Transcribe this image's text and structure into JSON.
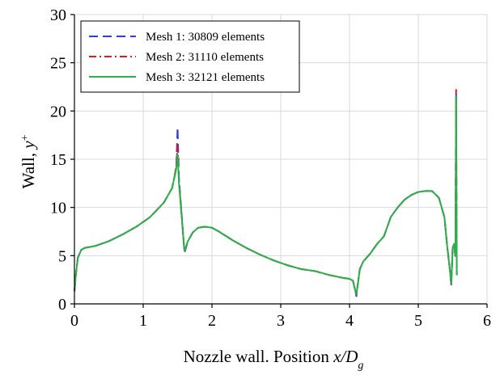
{
  "chart_data": {
    "type": "line",
    "title": "",
    "xlabel": "Nozzle wall. Position x/D",
    "xlabel_parts": {
      "main": "Nozzle wall. Position ",
      "var": "x/D",
      "sub": "g"
    },
    "ylabel": "Wall, y+",
    "ylabel_parts": {
      "main": "Wall, ",
      "var": "y",
      "sup": "+"
    },
    "xlim": [
      0,
      6
    ],
    "ylim": [
      0,
      30
    ],
    "xticks": [
      0,
      1,
      2,
      3,
      4,
      5,
      6
    ],
    "yticks": [
      0,
      5,
      10,
      15,
      20,
      25,
      30
    ],
    "grid": true,
    "legend_position": "top-left",
    "series": [
      {
        "name": "Mesh  1: 30809 elements",
        "color": "#2f3fd6",
        "style": "dashed",
        "x": [
          0.0,
          0.02,
          0.05,
          0.1,
          0.15,
          0.3,
          0.5,
          0.7,
          0.9,
          1.1,
          1.3,
          1.42,
          1.48,
          1.5,
          1.52,
          1.56,
          1.6,
          1.65,
          1.72,
          1.8,
          1.9,
          2.0,
          2.1,
          2.3,
          2.5,
          2.7,
          2.9,
          3.1,
          3.3,
          3.5,
          3.7,
          3.9,
          4.0,
          4.05,
          4.08,
          4.1,
          4.12,
          4.15,
          4.2,
          4.3,
          4.4,
          4.5,
          4.55,
          4.6,
          4.7,
          4.8,
          4.9,
          5.0,
          5.1,
          5.2,
          5.3,
          5.38,
          5.42,
          5.46,
          5.48,
          5.5,
          5.52,
          5.54,
          5.55,
          5.56
        ],
        "y": [
          1.3,
          3.0,
          4.8,
          5.6,
          5.8,
          6.0,
          6.5,
          7.2,
          8.0,
          9.0,
          10.5,
          12.0,
          14.0,
          18.3,
          13.0,
          9.2,
          5.3,
          6.5,
          7.4,
          7.9,
          8.0,
          7.9,
          7.5,
          6.6,
          5.8,
          5.1,
          4.5,
          4.0,
          3.6,
          3.4,
          3.0,
          2.7,
          2.6,
          2.4,
          1.5,
          0.8,
          2.0,
          3.6,
          4.4,
          5.2,
          6.2,
          7.0,
          8.0,
          9.0,
          10.0,
          10.8,
          11.3,
          11.6,
          11.7,
          11.7,
          11.0,
          9.0,
          6.0,
          3.5,
          1.9,
          5.8,
          6.2,
          4.8,
          22.0,
          3.0
        ]
      },
      {
        "name": "Mesh  2: 31110 elements",
        "color": "#d62020",
        "style": "dashdot",
        "x": [
          0.0,
          0.02,
          0.05,
          0.1,
          0.15,
          0.3,
          0.5,
          0.7,
          0.9,
          1.1,
          1.3,
          1.42,
          1.48,
          1.5,
          1.52,
          1.56,
          1.6,
          1.65,
          1.72,
          1.8,
          1.9,
          2.0,
          2.1,
          2.3,
          2.5,
          2.7,
          2.9,
          3.1,
          3.3,
          3.5,
          3.7,
          3.9,
          4.0,
          4.05,
          4.08,
          4.1,
          4.12,
          4.15,
          4.2,
          4.3,
          4.4,
          4.5,
          4.55,
          4.6,
          4.7,
          4.8,
          4.9,
          5.0,
          5.1,
          5.2,
          5.3,
          5.38,
          5.42,
          5.46,
          5.48,
          5.5,
          5.52,
          5.54,
          5.55,
          5.56
        ],
        "y": [
          1.3,
          3.0,
          4.8,
          5.6,
          5.8,
          6.0,
          6.5,
          7.2,
          8.0,
          9.0,
          10.5,
          12.0,
          14.2,
          16.5,
          12.8,
          9.0,
          5.4,
          6.5,
          7.4,
          7.9,
          8.0,
          7.9,
          7.5,
          6.6,
          5.8,
          5.1,
          4.5,
          4.0,
          3.6,
          3.4,
          3.0,
          2.7,
          2.6,
          2.4,
          1.5,
          0.9,
          2.0,
          3.6,
          4.4,
          5.2,
          6.2,
          7.0,
          8.0,
          9.0,
          10.0,
          10.8,
          11.3,
          11.6,
          11.7,
          11.7,
          11.0,
          9.0,
          6.0,
          3.5,
          2.0,
          5.8,
          6.2,
          5.0,
          22.2,
          3.0
        ]
      },
      {
        "name": "Mesh  3: 32121 elements",
        "color": "#2bb04a",
        "style": "solid",
        "x": [
          0.0,
          0.02,
          0.05,
          0.1,
          0.15,
          0.3,
          0.5,
          0.7,
          0.9,
          1.1,
          1.3,
          1.42,
          1.48,
          1.5,
          1.52,
          1.56,
          1.6,
          1.65,
          1.72,
          1.8,
          1.9,
          2.0,
          2.1,
          2.3,
          2.5,
          2.7,
          2.9,
          3.1,
          3.3,
          3.5,
          3.7,
          3.9,
          4.0,
          4.05,
          4.08,
          4.1,
          4.12,
          4.15,
          4.2,
          4.3,
          4.4,
          4.5,
          4.55,
          4.6,
          4.7,
          4.8,
          4.9,
          5.0,
          5.1,
          5.2,
          5.3,
          5.38,
          5.42,
          5.46,
          5.48,
          5.5,
          5.52,
          5.54,
          5.55,
          5.56
        ],
        "y": [
          1.3,
          3.0,
          4.8,
          5.6,
          5.8,
          6.0,
          6.5,
          7.2,
          8.0,
          9.0,
          10.5,
          12.0,
          14.0,
          15.5,
          12.5,
          9.0,
          5.5,
          6.5,
          7.4,
          7.9,
          8.0,
          7.9,
          7.5,
          6.6,
          5.8,
          5.1,
          4.5,
          4.0,
          3.6,
          3.4,
          3.0,
          2.7,
          2.6,
          2.4,
          1.5,
          1.0,
          2.0,
          3.6,
          4.4,
          5.2,
          6.2,
          7.0,
          8.0,
          9.0,
          10.0,
          10.8,
          11.3,
          11.6,
          11.7,
          11.7,
          11.0,
          9.0,
          6.0,
          3.5,
          2.1,
          5.8,
          6.2,
          5.0,
          21.5,
          3.0
        ]
      }
    ]
  }
}
